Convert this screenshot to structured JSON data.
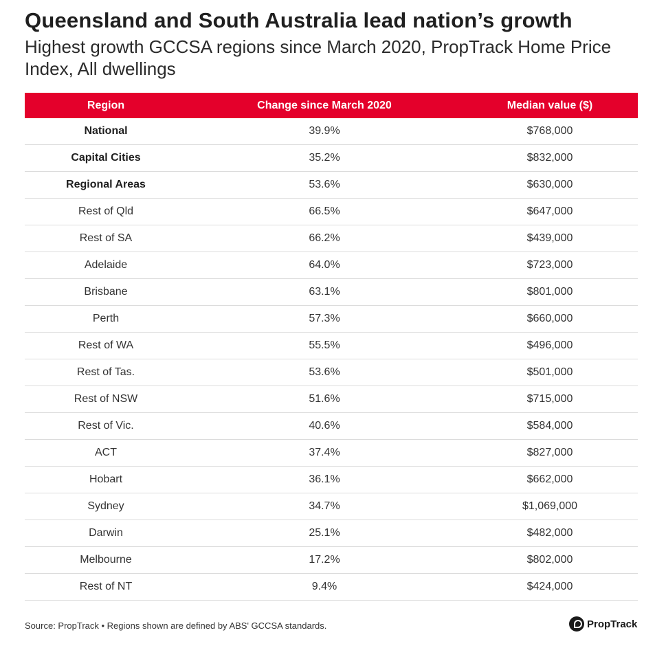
{
  "header": {
    "title": "Queensland and South Australia lead nation’s growth",
    "subtitle": "Highest growth GCCSA regions since March 2020, PropTrack Home Price Index, All dwellings"
  },
  "chart_data": {
    "type": "table",
    "columns": [
      "Region",
      "Change since March 2020",
      "Median value ($)"
    ],
    "rows": [
      {
        "region": "National",
        "change": "39.9%",
        "median": "$768,000",
        "bold": true
      },
      {
        "region": "Capital Cities",
        "change": "35.2%",
        "median": "$832,000",
        "bold": true
      },
      {
        "region": "Regional Areas",
        "change": "53.6%",
        "median": "$630,000",
        "bold": true
      },
      {
        "region": "Rest of Qld",
        "change": "66.5%",
        "median": "$647,000",
        "bold": false
      },
      {
        "region": "Rest of SA",
        "change": "66.2%",
        "median": "$439,000",
        "bold": false
      },
      {
        "region": "Adelaide",
        "change": "64.0%",
        "median": "$723,000",
        "bold": false
      },
      {
        "region": "Brisbane",
        "change": "63.1%",
        "median": "$801,000",
        "bold": false
      },
      {
        "region": "Perth",
        "change": "57.3%",
        "median": "$660,000",
        "bold": false
      },
      {
        "region": "Rest of WA",
        "change": "55.5%",
        "median": "$496,000",
        "bold": false
      },
      {
        "region": "Rest of Tas.",
        "change": "53.6%",
        "median": "$501,000",
        "bold": false
      },
      {
        "region": "Rest of NSW",
        "change": "51.6%",
        "median": "$715,000",
        "bold": false
      },
      {
        "region": "Rest of Vic.",
        "change": "40.6%",
        "median": "$584,000",
        "bold": false
      },
      {
        "region": "ACT",
        "change": "37.4%",
        "median": "$827,000",
        "bold": false
      },
      {
        "region": "Hobart",
        "change": "36.1%",
        "median": "$662,000",
        "bold": false
      },
      {
        "region": "Sydney",
        "change": "34.7%",
        "median": "$1,069,000",
        "bold": false
      },
      {
        "region": "Darwin",
        "change": "25.1%",
        "median": "$482,000",
        "bold": false
      },
      {
        "region": "Melbourne",
        "change": "17.2%",
        "median": "$802,000",
        "bold": false
      },
      {
        "region": "Rest of NT",
        "change": "9.4%",
        "median": "$424,000",
        "bold": false
      }
    ]
  },
  "footer": {
    "source": "Source: PropTrack • Regions shown are defined by ABS' GCCSA standards.",
    "brand": "PropTrack"
  },
  "colors": {
    "header_bg": "#e4002b",
    "header_text": "#ffffff",
    "row_divider": "#dcdcdc"
  }
}
